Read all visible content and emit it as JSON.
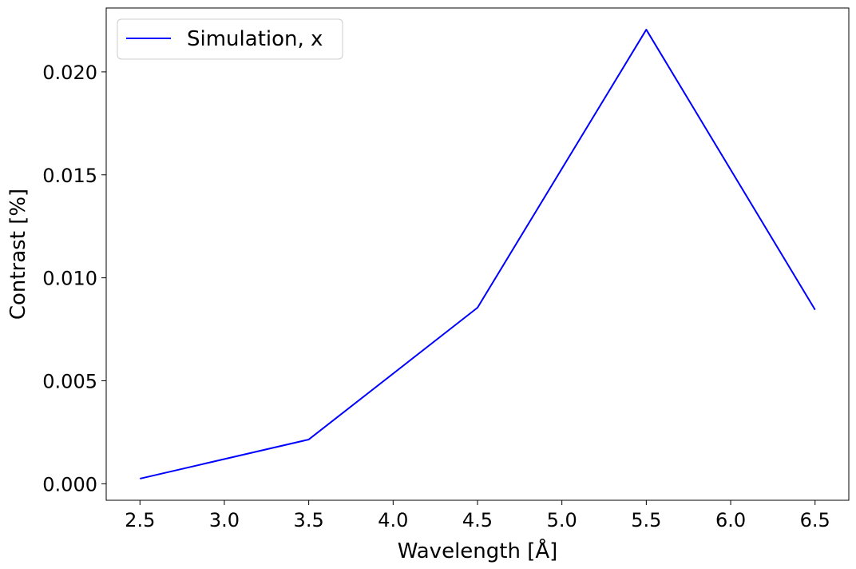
{
  "chart_data": {
    "type": "line",
    "title": "",
    "xlabel": "Wavelength [Å]",
    "ylabel": "Contrast [%]",
    "xlim": [
      2.3,
      6.7
    ],
    "ylim": [
      -0.0008,
      0.0231
    ],
    "x_ticks": [
      2.5,
      3.0,
      3.5,
      4.0,
      4.5,
      5.0,
      5.5,
      6.0,
      6.5
    ],
    "x_tick_labels": [
      "2.5",
      "3.0",
      "3.5",
      "4.0",
      "4.5",
      "5.0",
      "5.5",
      "6.0",
      "6.5"
    ],
    "y_ticks": [
      0.0,
      0.005,
      0.01,
      0.015,
      0.02
    ],
    "y_tick_labels": [
      "0.000",
      "0.005",
      "0.010",
      "0.015",
      "0.020"
    ],
    "grid": false,
    "legend_position": "top-left",
    "series": [
      {
        "name": "Simulation, x",
        "color": "#0000ff",
        "x": [
          2.5,
          3.5,
          4.5,
          5.5,
          6.5
        ],
        "y": [
          0.00025,
          0.00215,
          0.00855,
          0.02205,
          0.00845
        ]
      }
    ]
  }
}
